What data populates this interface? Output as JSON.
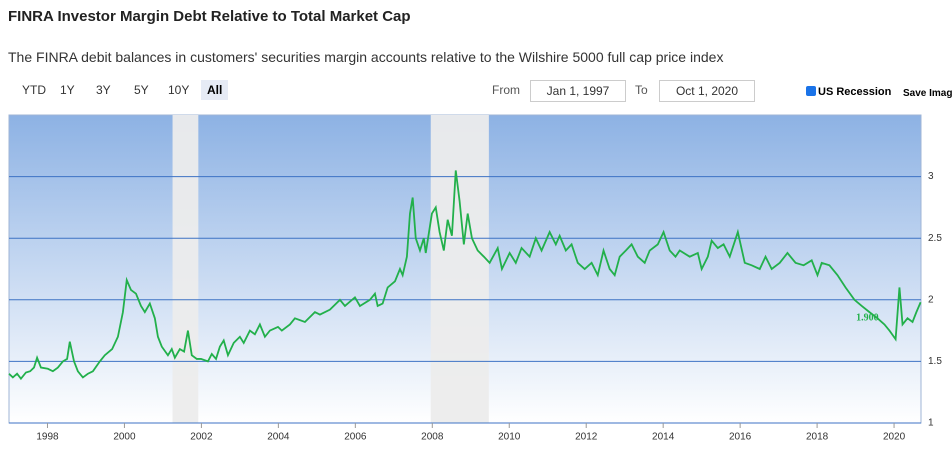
{
  "header": {
    "title": "FINRA Investor Margin Debt Relative to Total Market Cap",
    "subtitle": "The FINRA debit balances in customers' securities margin accounts relative to the Wilshire 5000 full cap price index"
  },
  "controls": {
    "ranges": [
      "YTD",
      "1Y",
      "3Y",
      "5Y",
      "10Y",
      "All"
    ],
    "selected_range": "All",
    "from_label": "From",
    "from_value": "Jan 1, 1997",
    "to_label": "To",
    "to_value": "Oct 1, 2020",
    "recession_label": "US Recession",
    "save_label": "Save Imag"
  },
  "chart_data": {
    "type": "line",
    "color": "#22b04b",
    "x": [
      1997.0,
      1997.1,
      1997.21,
      1997.31,
      1997.44,
      1997.55,
      1997.65,
      1997.73,
      1997.83,
      1998.01,
      1998.14,
      1998.27,
      1998.4,
      1998.51,
      1998.58,
      1998.69,
      1998.79,
      1998.92,
      1999.05,
      1999.18,
      1999.36,
      1999.49,
      1999.68,
      1999.83,
      1999.96,
      2000.06,
      2000.17,
      2000.3,
      2000.43,
      2000.53,
      2000.66,
      2000.79,
      2000.87,
      2000.97,
      2001.13,
      2001.23,
      2001.31,
      2001.44,
      2001.55,
      2001.65,
      2001.75,
      2001.88,
      2001.99,
      2002.17,
      2002.27,
      2002.38,
      2002.48,
      2002.58,
      2002.69,
      2002.84,
      2003.0,
      2003.1,
      2003.26,
      2003.39,
      2003.52,
      2003.65,
      2003.78,
      2003.99,
      2004.09,
      2004.3,
      2004.43,
      2004.69,
      2004.95,
      2005.08,
      2005.34,
      2005.6,
      2005.73,
      2005.99,
      2006.12,
      2006.38,
      2006.51,
      2006.58,
      2006.71,
      2006.84,
      2007.03,
      2007.16,
      2007.23,
      2007.34,
      2007.42,
      2007.49,
      2007.57,
      2007.68,
      2007.78,
      2007.83,
      2007.99,
      2008.09,
      2008.19,
      2008.3,
      2008.4,
      2008.51,
      2008.61,
      2008.71,
      2008.82,
      2008.92,
      2009.03,
      2009.18,
      2009.34,
      2009.49,
      2009.7,
      2009.81,
      2010.01,
      2010.17,
      2010.32,
      2010.53,
      2010.69,
      2010.84,
      2011.05,
      2011.21,
      2011.31,
      2011.47,
      2011.62,
      2011.78,
      2011.96,
      2012.14,
      2012.3,
      2012.45,
      2012.61,
      2012.74,
      2012.87,
      2013.03,
      2013.18,
      2013.34,
      2013.52,
      2013.65,
      2013.86,
      2014.01,
      2014.17,
      2014.32,
      2014.43,
      2014.69,
      2014.9,
      2015.0,
      2015.16,
      2015.26,
      2015.42,
      2015.57,
      2015.73,
      2015.94,
      2016.12,
      2016.3,
      2016.51,
      2016.66,
      2016.82,
      2017.03,
      2017.23,
      2017.44,
      2017.65,
      2017.86,
      2018.01,
      2018.12,
      2018.32,
      2018.53,
      2018.74,
      2018.97,
      2019.16,
      2019.36,
      2019.57,
      2019.75,
      2019.88,
      2020.04,
      2020.14,
      2020.22,
      2020.35,
      2020.48,
      2020.58,
      2020.69
    ],
    "values": [
      1.4,
      1.37,
      1.4,
      1.36,
      1.41,
      1.42,
      1.45,
      1.53,
      1.45,
      1.44,
      1.42,
      1.45,
      1.5,
      1.52,
      1.66,
      1.5,
      1.42,
      1.37,
      1.4,
      1.42,
      1.5,
      1.55,
      1.6,
      1.7,
      1.9,
      2.16,
      2.08,
      2.05,
      1.95,
      1.9,
      1.97,
      1.85,
      1.7,
      1.62,
      1.55,
      1.6,
      1.53,
      1.6,
      1.58,
      1.75,
      1.55,
      1.52,
      1.52,
      1.5,
      1.56,
      1.52,
      1.62,
      1.67,
      1.55,
      1.65,
      1.7,
      1.65,
      1.75,
      1.72,
      1.8,
      1.7,
      1.75,
      1.78,
      1.75,
      1.8,
      1.85,
      1.82,
      1.9,
      1.88,
      1.92,
      2.0,
      1.95,
      2.02,
      1.95,
      2.0,
      2.05,
      1.95,
      1.97,
      2.1,
      2.15,
      2.25,
      2.2,
      2.35,
      2.7,
      2.83,
      2.5,
      2.4,
      2.5,
      2.38,
      2.7,
      2.75,
      2.55,
      2.4,
      2.65,
      2.52,
      3.05,
      2.8,
      2.45,
      2.7,
      2.5,
      2.4,
      2.35,
      2.3,
      2.42,
      2.25,
      2.38,
      2.3,
      2.42,
      2.35,
      2.5,
      2.4,
      2.55,
      2.45,
      2.52,
      2.4,
      2.45,
      2.3,
      2.25,
      2.3,
      2.2,
      2.4,
      2.25,
      2.2,
      2.35,
      2.4,
      2.45,
      2.35,
      2.3,
      2.4,
      2.45,
      2.55,
      2.4,
      2.35,
      2.4,
      2.35,
      2.38,
      2.25,
      2.35,
      2.48,
      2.42,
      2.45,
      2.35,
      2.55,
      2.3,
      2.28,
      2.25,
      2.35,
      2.25,
      2.3,
      2.38,
      2.3,
      2.28,
      2.32,
      2.2,
      2.3,
      2.28,
      2.2,
      2.1,
      2.0,
      1.95,
      1.9,
      1.85,
      1.8,
      1.75,
      1.68,
      2.1,
      1.8,
      1.85,
      1.82,
      1.9,
      1.98
    ],
    "xlim": [
      1997,
      2020.7
    ],
    "xticks": [
      1998,
      2000,
      2002,
      2004,
      2006,
      2008,
      2010,
      2012,
      2014,
      2016,
      2018,
      2020
    ],
    "ylim": [
      1,
      3.5
    ],
    "yticks": [
      1,
      1.5,
      2,
      2.5,
      3
    ],
    "grid": true,
    "recessions": [
      [
        2001.25,
        2001.92
      ],
      [
        2007.96,
        2009.47
      ]
    ],
    "annotation": {
      "x": 2019.36,
      "y": 1.9,
      "text": "1.900"
    }
  }
}
